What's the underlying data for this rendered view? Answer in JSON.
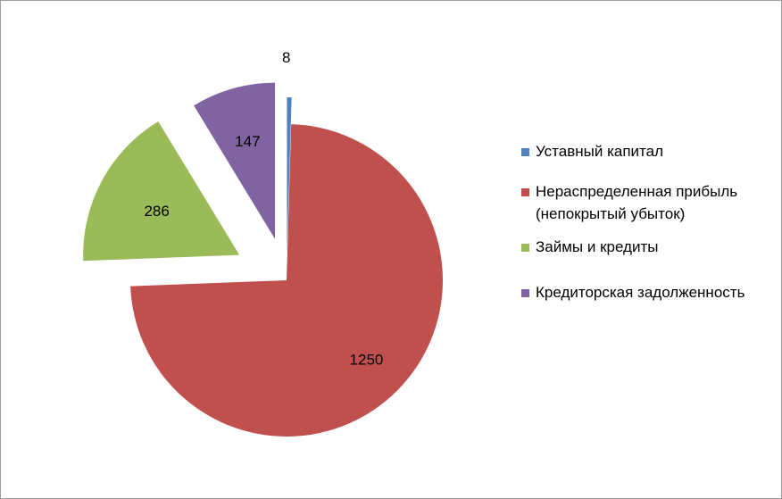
{
  "chart_data": {
    "type": "pie",
    "exploded": true,
    "legend_position": "right",
    "slices": [
      {
        "label": "Уставный капитал",
        "value": 8,
        "color": "#4f81bd"
      },
      {
        "label": "Нераспределенная прибыль (непокрытый убыток)",
        "value": 1250,
        "color": "#c0504d"
      },
      {
        "label": "Займы и кредиты",
        "value": 286,
        "color": "#9bbb59"
      },
      {
        "label": "Кредиторская задолженность",
        "value": 147,
        "color": "#8064a2"
      }
    ]
  }
}
